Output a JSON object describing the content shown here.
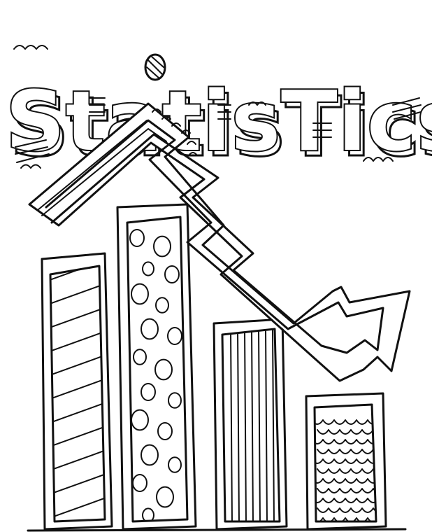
{
  "title": "StatisTics",
  "colors": {
    "ink": "#111111",
    "paper": "#ffffff"
  },
  "illustration": {
    "style": "black-and-white coloring page doodle",
    "bars": [
      {
        "pattern": "diagonal-stripes",
        "relative_height": 0.62
      },
      {
        "pattern": "polka-dots",
        "relative_height": 0.78
      },
      {
        "pattern": "vertical-stripes",
        "relative_height": 0.46
      },
      {
        "pattern": "scallops",
        "relative_height": 0.3
      }
    ],
    "arrow": "zigzag trend arrow pointing down-right"
  }
}
